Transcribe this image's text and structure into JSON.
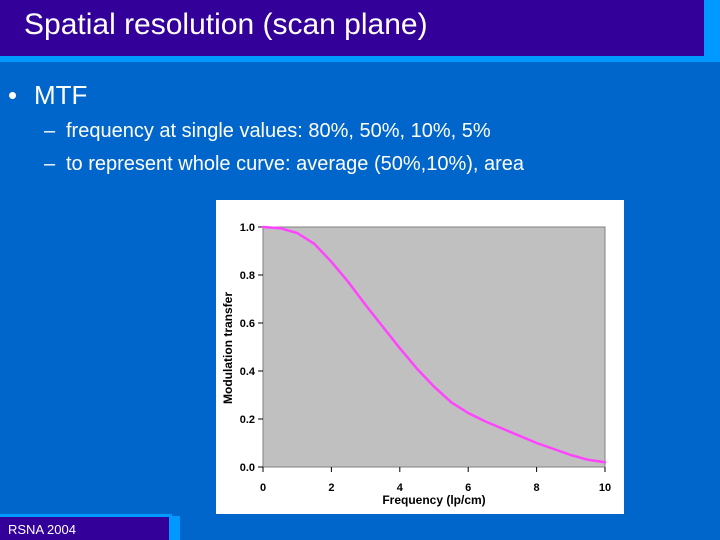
{
  "slide": {
    "title": "Spatial resolution (scan plane)",
    "bullet_symbol": "•",
    "dash_symbol": "–",
    "bullet_main": "MTF",
    "sub_bullets": [
      "frequency at single values:  80%, 50%, 10%, 5%",
      "to represent whole curve: average (50%,10%), area"
    ],
    "footer": "RSNA 2004"
  },
  "colors": {
    "background": "#0066cc",
    "title_bar": "#330099",
    "accent": "#0099ff",
    "plot_area": "#c0c0c0",
    "curve": "#ff44ff"
  },
  "chart_data": {
    "type": "line",
    "title": "",
    "xlabel": "Frequency (lp/cm)",
    "ylabel": "Modulation transfer",
    "xlim": [
      0,
      10
    ],
    "ylim": [
      0,
      1.0
    ],
    "x_ticks": [
      "0",
      "2",
      "4",
      "6",
      "8",
      "10"
    ],
    "y_ticks": [
      "0.0",
      "0.2",
      "0.4",
      "0.6",
      "0.8",
      "1.0"
    ],
    "grid": false,
    "series": [
      {
        "x": [
          0,
          0.5,
          1,
          1.5,
          2,
          2.5,
          3,
          3.5,
          4,
          4.5,
          5,
          5.5,
          6,
          6.5,
          7,
          7.5,
          8,
          8.5,
          9,
          9.5,
          10
        ],
        "y": [
          1.0,
          0.995,
          0.975,
          0.93,
          0.855,
          0.77,
          0.675,
          0.585,
          0.495,
          0.41,
          0.335,
          0.27,
          0.225,
          0.19,
          0.16,
          0.13,
          0.1,
          0.075,
          0.05,
          0.03,
          0.02
        ]
      }
    ]
  }
}
